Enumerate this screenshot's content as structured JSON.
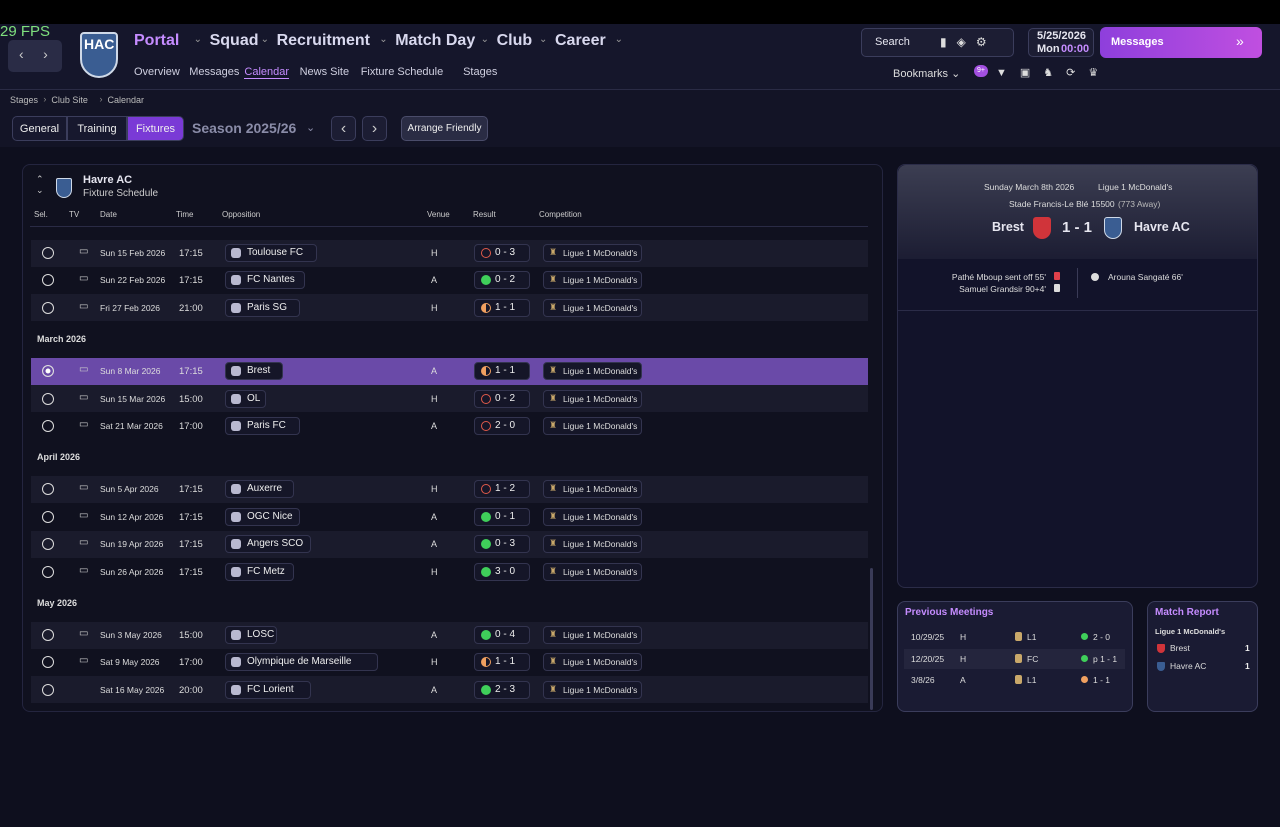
{
  "fps": "29 FPS",
  "logo": "HAC",
  "nav": {
    "menus": [
      "Portal",
      "Squad",
      "Recruitment",
      "Match Day",
      "Club",
      "Career"
    ],
    "submenu": [
      "Overview",
      "Messages",
      "Calendar",
      "News Site",
      "Fixture Schedule",
      "Stages"
    ]
  },
  "topbar": {
    "search": "Search",
    "date": "5/25/2026",
    "day": "Mon",
    "time": "00:00",
    "messages": "Messages",
    "bookmarks": "Bookmarks",
    "badge": "9+"
  },
  "breadcrumb": [
    "Stages",
    "Club Site",
    "Calendar"
  ],
  "tabs": [
    "General",
    "Training",
    "Fixtures"
  ],
  "season": "Season 2025/26",
  "arrange": "Arrange Friendly",
  "schedule": {
    "team": "Havre AC",
    "subtitle": "Fixture Schedule",
    "columns": [
      "Sel.",
      "TV",
      "Date",
      "Time",
      "Opposition",
      "Venue",
      "Result",
      "Competition"
    ],
    "groups": [
      {
        "label": null,
        "rows": [
          {
            "date": "Sun 15 Feb 2026",
            "time": "17:15",
            "opposition": "Toulouse FC",
            "venue": "H",
            "result": "0 - 3",
            "competition": "Ligue 1 McDonald's"
          },
          {
            "date": "Sun 22 Feb 2026",
            "time": "17:15",
            "opposition": "FC Nantes",
            "venue": "A",
            "result": "0 - 2",
            "competition": "Ligue 1 McDonald's"
          },
          {
            "date": "Fri 27 Feb 2026",
            "time": "21:00",
            "opposition": "Paris SG",
            "venue": "H",
            "result": "1 - 1",
            "competition": "Ligue 1 McDonald's"
          }
        ]
      },
      {
        "label": "March 2026",
        "rows": [
          {
            "date": "Sun 8 Mar 2026",
            "time": "17:15",
            "opposition": "Brest",
            "venue": "A",
            "result": "1 - 1",
            "competition": "Ligue 1 McDonald's"
          },
          {
            "date": "Sun 15 Mar 2026",
            "time": "15:00",
            "opposition": "OL",
            "venue": "H",
            "result": "0 - 2",
            "competition": "Ligue 1 McDonald's"
          },
          {
            "date": "Sat 21 Mar 2026",
            "time": "17:00",
            "opposition": "Paris FC",
            "venue": "A",
            "result": "2 - 0",
            "competition": "Ligue 1 McDonald's"
          }
        ]
      },
      {
        "label": "April 2026",
        "rows": [
          {
            "date": "Sun 5 Apr 2026",
            "time": "17:15",
            "opposition": "Auxerre",
            "venue": "H",
            "result": "1 - 2",
            "competition": "Ligue 1 McDonald's"
          },
          {
            "date": "Sun 12 Apr 2026",
            "time": "17:15",
            "opposition": "OGC Nice",
            "venue": "A",
            "result": "0 - 1",
            "competition": "Ligue 1 McDonald's"
          },
          {
            "date": "Sun 19 Apr 2026",
            "time": "17:15",
            "opposition": "Angers SCO",
            "venue": "A",
            "result": "0 - 3",
            "competition": "Ligue 1 McDonald's"
          },
          {
            "date": "Sun 26 Apr 2026",
            "time": "17:15",
            "opposition": "FC Metz",
            "venue": "H",
            "result": "3 - 0",
            "competition": "Ligue 1 McDonald's"
          }
        ]
      },
      {
        "label": "May 2026",
        "rows": [
          {
            "date": "Sun 3 May 2026",
            "time": "15:00",
            "opposition": "LOSC",
            "venue": "A",
            "result": "0 - 4",
            "competition": "Ligue 1 McDonald's"
          },
          {
            "date": "Sat 9 May 2026",
            "time": "17:00",
            "opposition": "Olympique de Marseille",
            "venue": "H",
            "result": "1 - 1",
            "competition": "Ligue 1 McDonald's"
          },
          {
            "date": "Sat 16 May 2026",
            "time": "20:00",
            "opposition": "FC Lorient",
            "venue": "A",
            "result": "2 - 3",
            "competition": "Ligue 1 McDonald's"
          }
        ]
      }
    ]
  },
  "match": {
    "date": "Sunday March 8th 2026",
    "competition": "Ligue 1 McDonald's",
    "stadium": "Stade Francis-Le Blé",
    "attendance": "15500",
    "away": "(773 Away)",
    "home_team": "Brest",
    "score": "1 - 1",
    "away_team": "Havre AC",
    "events": {
      "home": [
        "Pathé Mboup sent off 55'",
        "Samuel Grandsir 90+4'"
      ],
      "away": [
        "Arouna Sangaté 66'"
      ]
    }
  },
  "previous": {
    "title": "Previous Meetings",
    "rows": [
      [
        "10/29/25",
        "H",
        "L1",
        "2 - 0"
      ],
      [
        "12/20/25",
        "H",
        "FC",
        "p 1 - 1"
      ],
      [
        "3/8/26",
        "A",
        "L1",
        "1 - 1"
      ]
    ]
  },
  "report": {
    "title": "Match Report",
    "competition": "Ligue 1 McDonald's",
    "rows": [
      [
        "Brest",
        "1"
      ],
      [
        "Havre AC",
        "1"
      ]
    ]
  }
}
